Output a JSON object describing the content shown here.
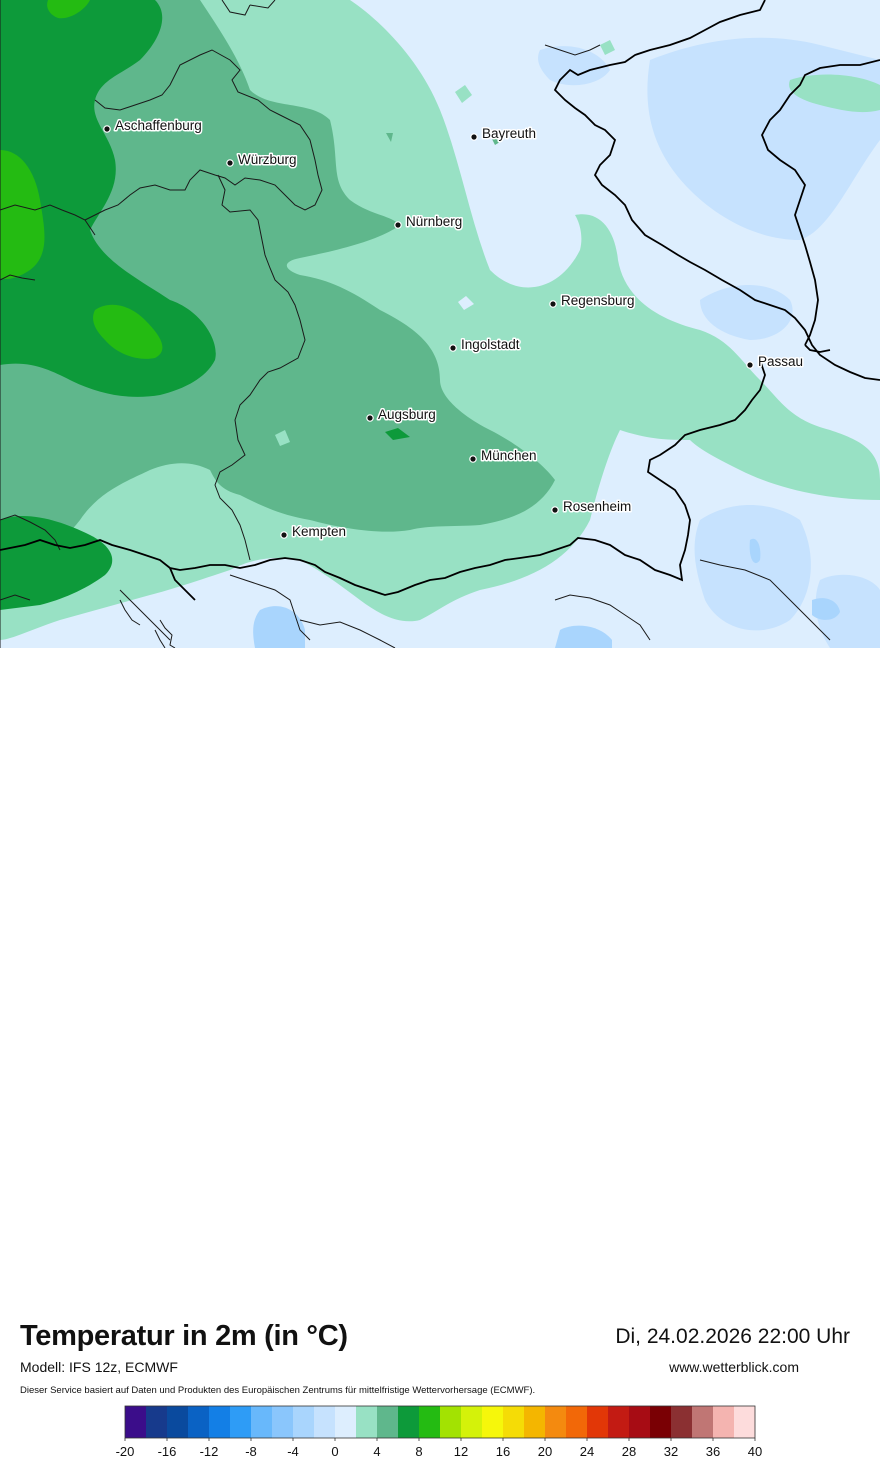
{
  "header": {
    "title": "Temperatur in 2m (in °C)",
    "datetime": "Di, 24.02.2026 22:00 Uhr",
    "model": "Modell: IFS 12z, ECMWF",
    "website": "www.wetterblick.com",
    "disclaimer": "Dieser Service basiert auf Daten und Produkten des Europäischen Zentrums für mittelfristige Wettervorhersage (ECMWF)."
  },
  "cities": [
    {
      "name": "Aschaffenburg"
    },
    {
      "name": "Würzburg"
    },
    {
      "name": "Bayreuth"
    },
    {
      "name": "Nürnberg"
    },
    {
      "name": "Regensburg"
    },
    {
      "name": "Ingolstadt"
    },
    {
      "name": "Passau"
    },
    {
      "name": "Augsburg"
    },
    {
      "name": "München"
    },
    {
      "name": "Rosenheim"
    },
    {
      "name": "Kempten"
    }
  ],
  "legend": {
    "ticks": [
      "-20",
      "-16",
      "-12",
      "-8",
      "-4",
      "0",
      "4",
      "8",
      "12",
      "16",
      "20",
      "24",
      "28",
      "32",
      "36",
      "40"
    ],
    "colors": [
      "#3b0d8a",
      "#173a8c",
      "#0a4a9e",
      "#0a62c4",
      "#137fe6",
      "#2e9cf6",
      "#68b8fb",
      "#8ac6fc",
      "#a9d5fd",
      "#c6e2fe",
      "#ddeefe",
      "#98e1c4",
      "#5fb78c",
      "#0d9a3a",
      "#24bb12",
      "#a3e202",
      "#d4f20a",
      "#f6f70b",
      "#f5dc06",
      "#f4b600",
      "#f48a0f",
      "#f26808",
      "#e23707",
      "#c31b13",
      "#a70c14",
      "#7a0004",
      "#8b3032",
      "#c07674",
      "#f4b4b0",
      "#fddcdc"
    ]
  }
}
